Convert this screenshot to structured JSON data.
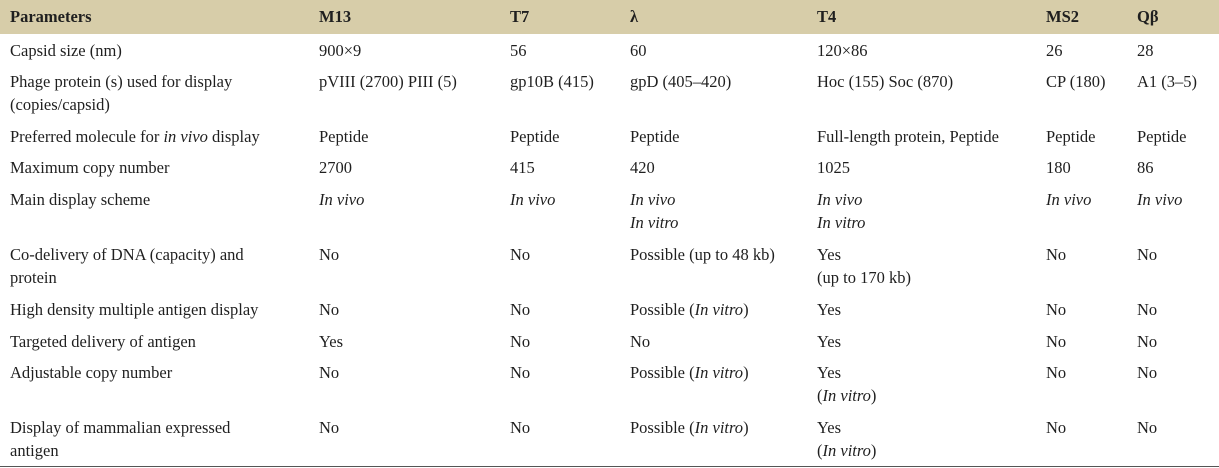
{
  "headers": [
    "Parameters",
    "M13",
    "T7",
    "λ",
    "T4",
    "MS2",
    "Qβ"
  ],
  "rows": [
    {
      "param": [
        "Capsid size (nm)"
      ],
      "cells": [
        [
          "900×9"
        ],
        [
          "56"
        ],
        [
          "60"
        ],
        [
          "120×86"
        ],
        [
          "26"
        ],
        [
          "28"
        ]
      ]
    },
    {
      "param": [
        "Phage protein (s) used for display",
        "(copies/capsid)"
      ],
      "cells": [
        [
          "pVIII (2700) PIII (5)"
        ],
        [
          "gp10B (415)"
        ],
        [
          "gpD (405–420)"
        ],
        [
          "Hoc (155) Soc (870)"
        ],
        [
          "CP (180)"
        ],
        [
          "A1 (3–5)"
        ]
      ]
    },
    {
      "param_pre": "Preferred molecule for ",
      "param_it": "in vivo",
      "param_post": " display",
      "cells": [
        [
          "Peptide"
        ],
        [
          "Peptide"
        ],
        [
          "Peptide"
        ],
        [
          "Full-length protein, Peptide"
        ],
        [
          "Peptide"
        ],
        [
          "Peptide"
        ]
      ]
    },
    {
      "param": [
        "Maximum copy number"
      ],
      "cells": [
        [
          "2700"
        ],
        [
          "415"
        ],
        [
          "420"
        ],
        [
          "1025"
        ],
        [
          "180"
        ],
        [
          "86"
        ]
      ]
    },
    {
      "param": [
        "Main display scheme"
      ],
      "cells": [
        [
          "In vivo"
        ],
        [
          "In vivo"
        ],
        [
          "In vivo",
          "In vitro"
        ],
        [
          "In vivo",
          "In vitro"
        ],
        [
          "In vivo"
        ],
        [
          "In vivo"
        ]
      ]
    },
    {
      "param": [
        "Co-delivery of DNA (capacity) and",
        "protein"
      ],
      "cells": [
        [
          "No"
        ],
        [
          "No"
        ],
        [
          "Possible (up to 48 kb)"
        ],
        [
          "Yes",
          "(up to 170 kb)"
        ],
        [
          "No"
        ],
        [
          "No"
        ]
      ]
    },
    {
      "param": [
        "High density multiple antigen display"
      ],
      "cells": [
        [
          "No"
        ],
        [
          "No"
        ],
        [
          "Possible (In vitro)"
        ],
        [
          "Yes"
        ],
        [
          "No"
        ],
        [
          "No"
        ]
      ]
    },
    {
      "param": [
        "Targeted delivery of antigen"
      ],
      "cells": [
        [
          "Yes"
        ],
        [
          "No"
        ],
        [
          "No"
        ],
        [
          "Yes"
        ],
        [
          "No"
        ],
        [
          "No"
        ]
      ]
    },
    {
      "param": [
        "Adjustable copy number"
      ],
      "cells": [
        [
          "No"
        ],
        [
          "No"
        ],
        [
          "Possible (In vitro)"
        ],
        [
          "Yes",
          "(In vitro)"
        ],
        [
          "No"
        ],
        [
          "No"
        ]
      ]
    },
    {
      "param": [
        "Display of mammalian expressed",
        "antigen"
      ],
      "cells": [
        [
          "No"
        ],
        [
          "No"
        ],
        [
          "Possible (In vitro)"
        ],
        [
          "Yes",
          "(In vitro)"
        ],
        [
          "No"
        ],
        [
          "No"
        ]
      ]
    }
  ]
}
